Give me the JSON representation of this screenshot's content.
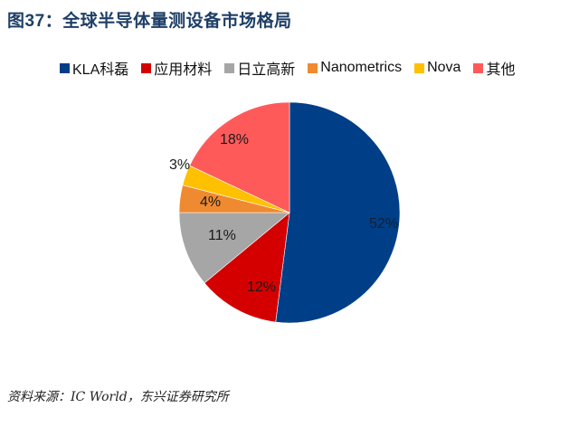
{
  "title": "图37：全球半导体量测设备市场格局",
  "legend": [
    {
      "label": "KLA科磊",
      "color": "#003f87"
    },
    {
      "label": "应用材料",
      "color": "#d40000"
    },
    {
      "label": "日立高新",
      "color": "#a6a6a6"
    },
    {
      "label": "Nanometrics",
      "color": "#f08a30"
    },
    {
      "label": "Nova",
      "color": "#ffc000"
    },
    {
      "label": "其他",
      "color": "#ff5a5a"
    }
  ],
  "source": "资料来源：IC World，东兴证券研究所",
  "chart_data": {
    "type": "pie",
    "title": "全球半导体量测设备市场格局",
    "categories": [
      "KLA科磊",
      "应用材料",
      "日立高新",
      "Nanometrics",
      "Nova",
      "其他"
    ],
    "values": [
      52,
      12,
      11,
      4,
      3,
      18
    ],
    "unit": "%",
    "colors": [
      "#003f87",
      "#d40000",
      "#a6a6a6",
      "#f08a30",
      "#ffc000",
      "#ff5a5a"
    ],
    "labels": [
      "52%",
      "12%",
      "11%",
      "4%",
      "3%",
      "18%"
    ],
    "legend_position": "top",
    "start_angle": "12 o'clock, clockwise"
  }
}
